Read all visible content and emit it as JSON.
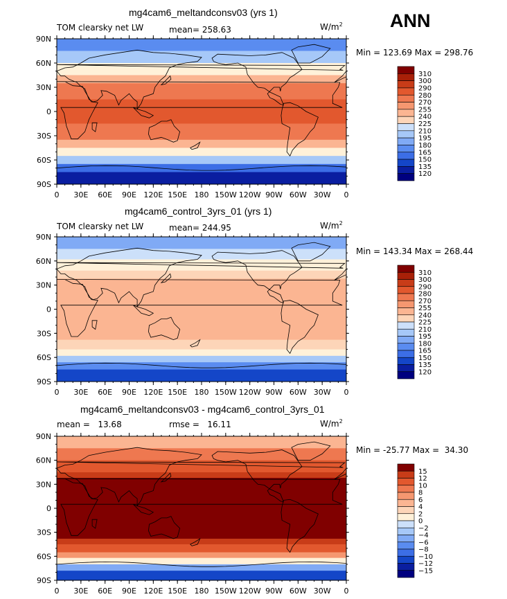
{
  "season": "ANN",
  "palettes": {
    "abs": [
      "#00007f",
      "#0a1ea0",
      "#1446c8",
      "#3c6ee6",
      "#5a8cf0",
      "#80aaf5",
      "#a6c8f8",
      "#cce0fa",
      "#fff1d9",
      "#fdd5b8",
      "#fbb592",
      "#f59770",
      "#ee7850",
      "#e2582e",
      "#c83c18",
      "#a82008",
      "#800000"
    ],
    "diff": [
      "#00007f",
      "#0a1ea0",
      "#1446c8",
      "#3c6ee6",
      "#5a8cf0",
      "#80aaf5",
      "#a6c8f8",
      "#cce0fa",
      "#ffffff",
      "#fff1d9",
      "#fdd5b8",
      "#fbb592",
      "#f59770",
      "#ee7850",
      "#e2582e",
      "#c83c18",
      "#800000"
    ],
    "land": "#000000"
  },
  "chart_data": [
    {
      "type": "heatmap",
      "title": "mg4cam6_meltandconsv03 (yrs 1)",
      "variable": "TOM clearsky net LW",
      "stat": "mean= 258.63",
      "units": "W/m",
      "units_sup": "2",
      "min": "123.69",
      "max": "298.76",
      "levels": [
        "310",
        "300",
        "290",
        "280",
        "270",
        "255",
        "240",
        "225",
        "210",
        "195",
        "180",
        "165",
        "150",
        "135",
        "120"
      ],
      "lat_labels": [
        "90N",
        "60N",
        "30N",
        "0",
        "30S",
        "60S",
        "90S"
      ],
      "lon_labels": [
        "0",
        "30E",
        "60E",
        "90E",
        "120E",
        "150E",
        "180",
        "150W",
        "120W",
        "90W",
        "60W",
        "30W",
        "0"
      ],
      "bands": [
        {
          "lat_range": [
            90,
            75
          ],
          "level": 4
        },
        {
          "lat_range": [
            75,
            60
          ],
          "level": 6
        },
        {
          "lat_range": [
            60,
            45
          ],
          "level": 8
        },
        {
          "lat_range": [
            45,
            35
          ],
          "level": 10
        },
        {
          "lat_range": [
            35,
            15
          ],
          "level": 12
        },
        {
          "lat_range": [
            15,
            -15
          ],
          "level": 13
        },
        {
          "lat_range": [
            -15,
            -35
          ],
          "level": 12
        },
        {
          "lat_range": [
            -35,
            -45
          ],
          "level": 10
        },
        {
          "lat_range": [
            -45,
            -55
          ],
          "level": 8
        },
        {
          "lat_range": [
            -55,
            -65
          ],
          "level": 6
        },
        {
          "lat_range": [
            -65,
            -75
          ],
          "level": 3
        },
        {
          "lat_range": [
            -75,
            -90
          ],
          "level": 1
        }
      ]
    },
    {
      "type": "heatmap",
      "title": "mg4cam6_control_3yrs_01 (yrs 1)",
      "variable": "TOM clearsky net LW",
      "stat": "mean= 244.95",
      "units": "W/m",
      "units_sup": "2",
      "min": "143.34",
      "max": "268.44",
      "levels": [
        "310",
        "300",
        "290",
        "280",
        "270",
        "255",
        "240",
        "225",
        "210",
        "195",
        "180",
        "165",
        "150",
        "135",
        "120"
      ],
      "lat_labels": [
        "90N",
        "60N",
        "30N",
        "0",
        "30S",
        "60S",
        "90S"
      ],
      "lon_labels": [
        "0",
        "30E",
        "60E",
        "90E",
        "120E",
        "150E",
        "180",
        "150W",
        "120W",
        "90W",
        "60W",
        "30W",
        "0"
      ],
      "bands": [
        {
          "lat_range": [
            90,
            75
          ],
          "level": 5
        },
        {
          "lat_range": [
            75,
            62
          ],
          "level": 7
        },
        {
          "lat_range": [
            62,
            48
          ],
          "level": 8
        },
        {
          "lat_range": [
            48,
            38
          ],
          "level": 9
        },
        {
          "lat_range": [
            38,
            -38
          ],
          "level": 10
        },
        {
          "lat_range": [
            -38,
            -50
          ],
          "level": 9
        },
        {
          "lat_range": [
            -50,
            -58
          ],
          "level": 8
        },
        {
          "lat_range": [
            -58,
            -66
          ],
          "level": 6
        },
        {
          "lat_range": [
            -66,
            -75
          ],
          "level": 4
        },
        {
          "lat_range": [
            -75,
            -90
          ],
          "level": 2
        }
      ]
    },
    {
      "type": "heatmap",
      "title": "mg4cam6_meltandconsv03 - mg4cam6_control_3yrs_01",
      "variable": "mean =   13.68",
      "stat": "rmse =   16.11",
      "units": "W/m",
      "units_sup": "2",
      "min": "-25.77",
      "max": " 34.30",
      "levels": [
        "15",
        "12",
        "10",
        "8",
        "6",
        "4",
        "2",
        "0",
        "−2",
        "−4",
        "−6",
        "−8",
        "−10",
        "−12",
        "−15"
      ],
      "lat_labels": [
        "90N",
        "60N",
        "30N",
        "0",
        "30S",
        "60S",
        "90S"
      ],
      "lon_labels": [
        "0",
        "30E",
        "60E",
        "90E",
        "120E",
        "150E",
        "180",
        "150W",
        "120W",
        "90W",
        "60W",
        "30W",
        "0"
      ],
      "bands": [
        {
          "lat_range": [
            90,
            75
          ],
          "level": 11
        },
        {
          "lat_range": [
            75,
            60
          ],
          "level": 13
        },
        {
          "lat_range": [
            60,
            45
          ],
          "level": 14
        },
        {
          "lat_range": [
            45,
            38
          ],
          "level": 15
        },
        {
          "lat_range": [
            38,
            -38
          ],
          "level": 16
        },
        {
          "lat_range": [
            -38,
            -45
          ],
          "level": 15
        },
        {
          "lat_range": [
            -45,
            -55
          ],
          "level": 14
        },
        {
          "lat_range": [
            -55,
            -62
          ],
          "level": 12
        },
        {
          "lat_range": [
            -62,
            -70
          ],
          "level": 9
        },
        {
          "lat_range": [
            -70,
            -78
          ],
          "level": 5
        },
        {
          "lat_range": [
            -78,
            -90
          ],
          "level": 2
        }
      ]
    }
  ]
}
